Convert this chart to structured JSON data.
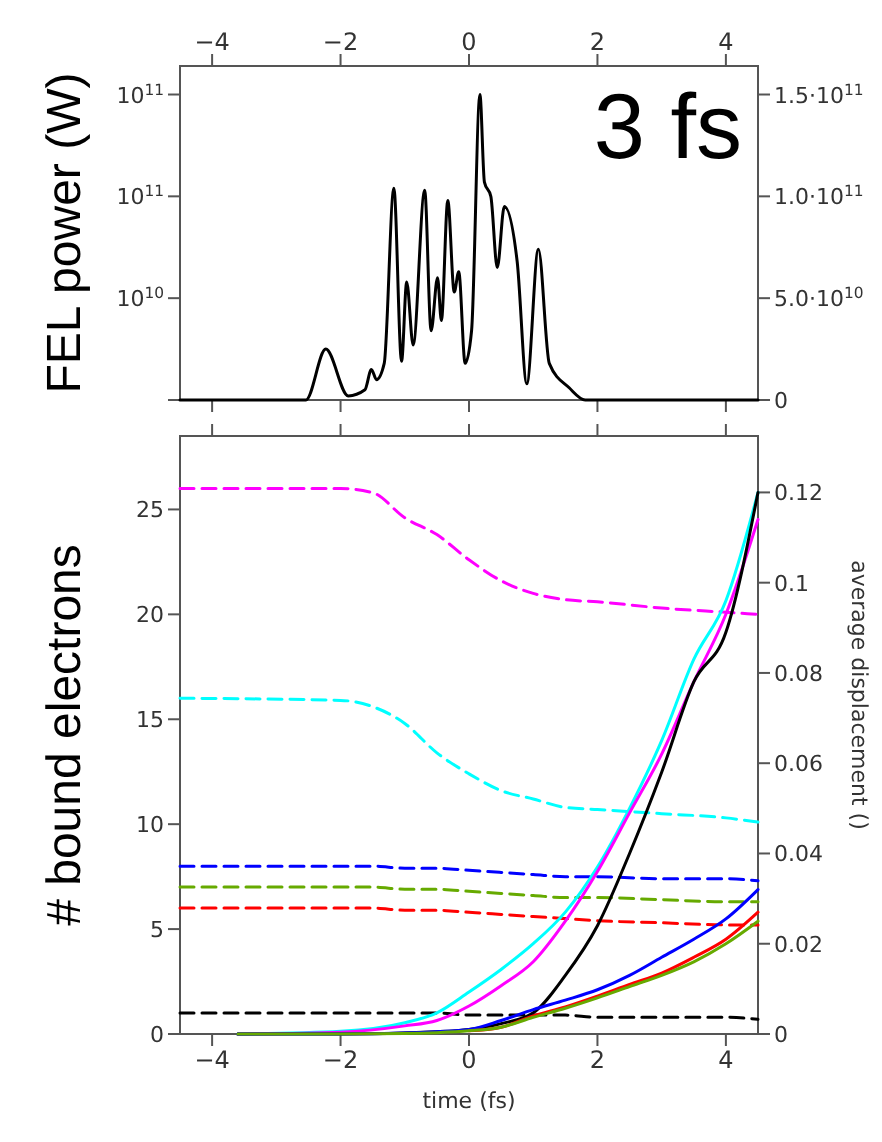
{
  "chart_data": [
    {
      "type": "line",
      "ylabel": "FEL power (W)",
      "annotations": [
        "3 fs",
        "10$^{11}$",
        "10$^{11}$",
        "10$^{10}$"
      ],
      "xlim": [
        -4.5,
        4.5
      ],
      "xticks": [
        -4,
        -2,
        0,
        2,
        4
      ],
      "y2lim": [
        0,
        164000000000.0
      ],
      "y2ticks": [
        0,
        {
          "value": 50000000000.0,
          "label": "5.0·10$^{10}$"
        },
        {
          "value": 100000000000.0,
          "label": "1.0·10$^{11}$"
        },
        {
          "value": 150000000000.0,
          "label": "1.5·10$^{11}$"
        }
      ],
      "series": [
        {
          "color": "#000000",
          "axis": "y2",
          "x": [
            -4.5,
            -2.54,
            -2.23,
            -1.88,
            -1.62,
            -1.52,
            -1.44,
            -1.32,
            -1.17,
            -1.05,
            -0.97,
            -0.87,
            -0.69,
            -0.59,
            -0.49,
            -0.43,
            -0.33,
            -0.23,
            -0.16,
            -0.06,
            0.04,
            0.17,
            0.24,
            0.34,
            0.44,
            0.55,
            0.75,
            0.9,
            1.08,
            1.25,
            1.56,
            1.81,
            4.5
          ],
          "values": [
            0,
            0,
            25000000000.0,
            2000000000.0,
            5000000000.0,
            15000000000.0,
            10000000000.0,
            18000000000.0,
            104000000000.0,
            19000000000.0,
            58000000000.0,
            27000000000.0,
            103000000000.0,
            34000000000.0,
            60000000000.0,
            39000000000.0,
            98000000000.0,
            53000000000.0,
            63000000000.0,
            18000000000.0,
            34000000000.0,
            150000000000.0,
            107000000000.0,
            100000000000.0,
            65000000000.0,
            95000000000.0,
            68000000000.0,
            8000000000.0,
            74000000000.0,
            18000000000.0,
            6000000000.0,
            0,
            0
          ]
        }
      ]
    },
    {
      "type": "line",
      "xlabel": "time (fs)",
      "ylabel": "# bound electrons",
      "y2label": "average displacement ()",
      "xlim": [
        -4.5,
        4.5
      ],
      "xticks": [
        -4,
        -2,
        0,
        2,
        4
      ],
      "ylim": [
        0,
        28.5
      ],
      "yticks": [
        0,
        5,
        10,
        15,
        20,
        25
      ],
      "y2lim": [
        0,
        0.1325
      ],
      "y2ticks": [
        0,
        0.02,
        0.04,
        0.06,
        0.08,
        0.1,
        0.12
      ],
      "series": [
        {
          "color": "#ff00ff",
          "line_style": "dashed",
          "x": [
            -4.5,
            -2,
            -1.5,
            -1,
            -0.5,
            0,
            0.5,
            1,
            1.5,
            2,
            3,
            4,
            4.5
          ],
          "values": [
            26,
            26,
            25.8,
            24.6,
            23.8,
            22.6,
            21.6,
            21.0,
            20.7,
            20.6,
            20.3,
            20.1,
            20.0
          ]
        },
        {
          "color": "#00ffff",
          "line_style": "dashed",
          "x": [
            -4.5,
            -2,
            -1.5,
            -1,
            -0.5,
            0,
            0.5,
            1,
            1.5,
            2,
            3,
            4,
            4.5
          ],
          "values": [
            16,
            15.9,
            15.6,
            14.8,
            13.4,
            12.4,
            11.6,
            11.2,
            10.8,
            10.7,
            10.5,
            10.3,
            10.1
          ]
        },
        {
          "color": "#0000ff",
          "line_style": "dashed",
          "x": [
            -4.5,
            -2,
            -1.5,
            -1,
            -0.5,
            0,
            0.5,
            1,
            1.5,
            2,
            3,
            4,
            4.5
          ],
          "values": [
            8,
            8,
            8,
            7.9,
            7.9,
            7.8,
            7.7,
            7.6,
            7.5,
            7.5,
            7.4,
            7.4,
            7.3
          ]
        },
        {
          "color": "#66aa00",
          "line_style": "dashed",
          "x": [
            -4.5,
            -2,
            -1.5,
            -1,
            -0.5,
            0,
            0.5,
            1,
            1.5,
            2,
            3,
            4,
            4.5
          ],
          "values": [
            7,
            7,
            7,
            6.9,
            6.9,
            6.8,
            6.7,
            6.6,
            6.5,
            6.5,
            6.4,
            6.3,
            6.3
          ]
        },
        {
          "color": "#ff0000",
          "line_style": "dashed",
          "x": [
            -4.5,
            -2,
            -1.5,
            -1,
            -0.5,
            0,
            0.5,
            1,
            1.5,
            2,
            3,
            4,
            4.5
          ],
          "values": [
            6,
            6,
            6,
            5.9,
            5.9,
            5.8,
            5.7,
            5.6,
            5.5,
            5.4,
            5.3,
            5.2,
            5.2
          ]
        },
        {
          "color": "#000000",
          "line_style": "dashed",
          "x": [
            -4.5,
            -2,
            -1.5,
            -1,
            -0.5,
            0,
            0.5,
            1,
            1.5,
            2,
            3,
            4,
            4.5
          ],
          "values": [
            1,
            1,
            1,
            1,
            1,
            0.9,
            0.9,
            0.9,
            0.9,
            0.8,
            0.8,
            0.8,
            0.7
          ]
        },
        {
          "color": "#00ffff",
          "axis": "y2",
          "line_style": "solid",
          "x": [
            -3.6,
            -2,
            -1,
            -0.5,
            0,
            0.5,
            1,
            1.5,
            2,
            2.5,
            3,
            3.5,
            4,
            4.5
          ],
          "values": [
            0,
            0.0006,
            0.0025,
            0.0047,
            0.0093,
            0.0143,
            0.02,
            0.027,
            0.037,
            0.05,
            0.065,
            0.083,
            0.096,
            0.12
          ]
        },
        {
          "color": "#ff00ff",
          "axis": "y2",
          "line_style": "solid",
          "x": [
            -3.6,
            -2,
            -1,
            -0.5,
            0,
            0.5,
            1,
            1.5,
            2,
            2.5,
            3,
            3.5,
            4,
            4.5
          ],
          "values": [
            0,
            0.0004,
            0.0018,
            0.003,
            0.0062,
            0.0107,
            0.016,
            0.025,
            0.036,
            0.049,
            0.062,
            0.078,
            0.093,
            0.114
          ]
        },
        {
          "color": "#000000",
          "axis": "y2",
          "line_style": "solid",
          "x": [
            -3.6,
            -2,
            -1,
            -0.5,
            0,
            0.5,
            1,
            1.5,
            2,
            2.5,
            3,
            3.5,
            4,
            4.5
          ],
          "values": [
            0,
            0,
            null,
            0.0005,
            0.001,
            0.0023,
            0.0047,
            0.013,
            0.024,
            0.04,
            0.058,
            0.078,
            0.089,
            0.12
          ]
        },
        {
          "color": "#0000ff",
          "axis": "y2",
          "line_style": "solid",
          "x": [
            -3.6,
            -2,
            -1,
            -0.5,
            0,
            0.5,
            1,
            1.5,
            2,
            2.5,
            3,
            3.5,
            4,
            4.5
          ],
          "values": [
            0,
            0,
            0.0002,
            0.0005,
            0.001,
            0.003,
            0.0054,
            0.0075,
            0.0098,
            0.013,
            0.017,
            0.021,
            0.0255,
            0.032
          ]
        },
        {
          "color": "#ff0000",
          "axis": "y2",
          "line_style": "solid",
          "x": [
            0,
            0.5,
            1,
            1.5,
            2,
            2.5,
            3,
            3.5,
            4,
            4.5
          ],
          "values": [
            0.0007,
            0.0015,
            0.004,
            0.006,
            0.0084,
            0.011,
            0.0135,
            0.017,
            0.021,
            0.027
          ]
        },
        {
          "color": "#66aa00",
          "axis": "y2",
          "line_style": "solid",
          "x": [
            -3.6,
            -2,
            -1,
            -0.5,
            0,
            0.5,
            1,
            1.5,
            2,
            2.5,
            3,
            3.5,
            4,
            4.5
          ],
          "values": [
            0,
            0,
            0.0001,
            0.0003,
            0.0007,
            0.0015,
            0.0037,
            0.0057,
            0.008,
            0.0105,
            0.013,
            0.016,
            0.02,
            0.025
          ]
        }
      ]
    }
  ]
}
